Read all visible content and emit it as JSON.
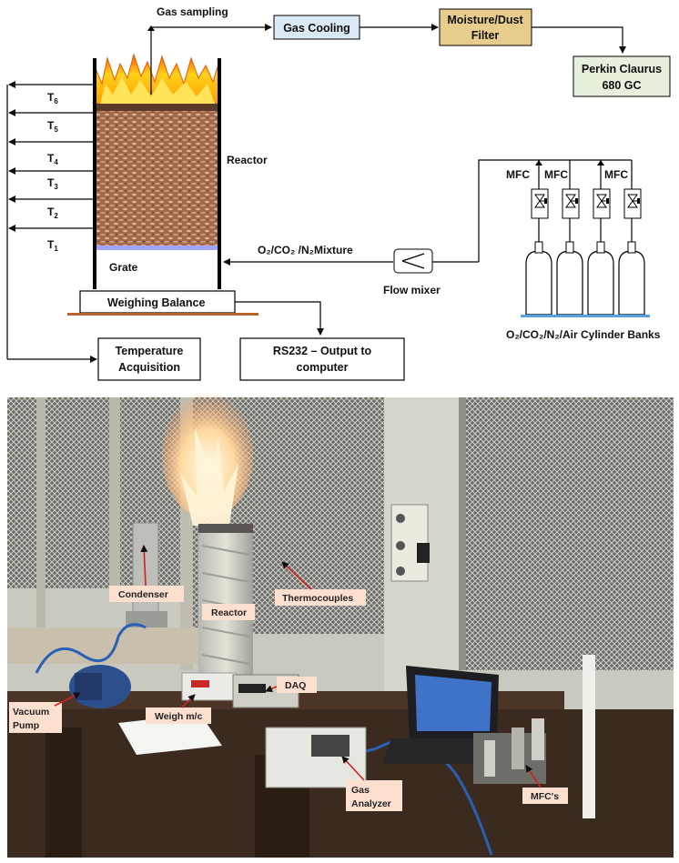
{
  "diagram": {
    "gas_sampling": "Gas sampling",
    "gas_cooling": "Gas Cooling",
    "filter_line1": "Moisture/Dust",
    "filter_line2": "Filter",
    "gc_line1": "Perkin Claurus",
    "gc_line2": "680 GC",
    "reactor": "Reactor",
    "grate": "Grate",
    "weighing_balance": "Weighing Balance",
    "temperature_line1": "Temperature",
    "temperature_line2": "Acquisition",
    "rs232_line1": "RS232 – Output to",
    "rs232_line2": "computer",
    "mixture_label": "O₂/CO₂ /N₂Mixture",
    "flow_mixer": "Flow mixer",
    "mfc": "MFC",
    "cylinder_banks": "O₂/CO₂/N₂/Air Cylinder Banks",
    "thermocouples": [
      "T6",
      "T5",
      "T4",
      "T3",
      "T2",
      "T1"
    ]
  },
  "photo": {
    "labels": {
      "condenser": "Condenser",
      "reactor": "Reactor",
      "thermocouples": "Thermocouples",
      "vacuum_pump_1": "Vacuum",
      "vacuum_pump_2": "Pump",
      "weigh": "Weigh m/c",
      "daq": "DAQ",
      "gas_analyzer_1": "Gas",
      "gas_analyzer_2": "Analyzer",
      "mfcs": "MFC's"
    }
  },
  "colors": {
    "box_blue": "#dbe8f5",
    "box_tan": "#e8cc8e",
    "box_green": "#e6f0dc",
    "table_wood": "#4a3526",
    "wall": "#d8d8d0"
  }
}
